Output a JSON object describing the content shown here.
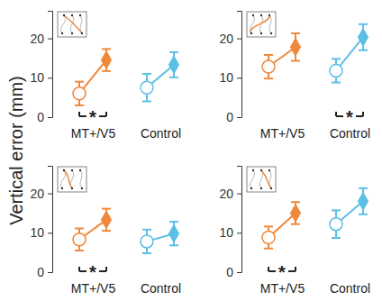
{
  "chart_data": [
    {
      "type": "dot",
      "ylabel": "Vertical error (mm)",
      "categories": [
        "MT+/V5",
        "Control"
      ],
      "colors": [
        "#f0883a",
        "#5cbfe6"
      ],
      "ylim": [
        0,
        27
      ],
      "yticks": [
        0,
        10,
        20
      ],
      "series": [
        {
          "marker": "open-circle",
          "values": [
            6.0,
            7.5
          ],
          "errors": [
            3.0,
            3.5
          ]
        },
        {
          "marker": "diamond",
          "values": [
            14.5,
            13.3
          ],
          "errors": [
            2.8,
            3.2
          ]
        }
      ],
      "annotations": [
        {
          "text": "*",
          "category": "MT+/V5"
        }
      ]
    },
    {
      "type": "dot",
      "categories": [
        "MT+/V5",
        "Control"
      ],
      "colors": [
        "#f0883a",
        "#5cbfe6"
      ],
      "ylim": [
        0,
        27
      ],
      "yticks": [
        0,
        10,
        20
      ],
      "series": [
        {
          "marker": "open-circle",
          "values": [
            12.8,
            11.8
          ],
          "errors": [
            3.0,
            3.0
          ]
        },
        {
          "marker": "diamond",
          "values": [
            17.8,
            20.3
          ],
          "errors": [
            3.5,
            3.3
          ]
        }
      ],
      "annotations": [
        {
          "text": "*",
          "category": "Control"
        }
      ]
    },
    {
      "type": "dot",
      "categories": [
        "MT+/V5",
        "Control"
      ],
      "colors": [
        "#f0883a",
        "#5cbfe6"
      ],
      "ylim": [
        0,
        27
      ],
      "yticks": [
        0,
        10,
        20
      ],
      "series": [
        {
          "marker": "open-circle",
          "values": [
            8.3,
            7.8
          ],
          "errors": [
            2.8,
            3.0
          ]
        },
        {
          "marker": "diamond",
          "values": [
            13.3,
            9.8
          ],
          "errors": [
            2.8,
            3.0
          ]
        }
      ],
      "annotations": [
        {
          "text": "*",
          "category": "MT+/V5"
        }
      ]
    },
    {
      "type": "dot",
      "categories": [
        "MT+/V5",
        "Control"
      ],
      "colors": [
        "#f0883a",
        "#5cbfe6"
      ],
      "ylim": [
        0,
        27
      ],
      "yticks": [
        0,
        10,
        20
      ],
      "series": [
        {
          "marker": "open-circle",
          "values": [
            8.8,
            12.2
          ],
          "errors": [
            2.8,
            3.5
          ]
        },
        {
          "marker": "diamond",
          "values": [
            15.0,
            18.0
          ],
          "errors": [
            2.8,
            3.3
          ]
        }
      ],
      "annotations": [
        {
          "text": "*",
          "category": "MT+/V5"
        }
      ]
    }
  ]
}
